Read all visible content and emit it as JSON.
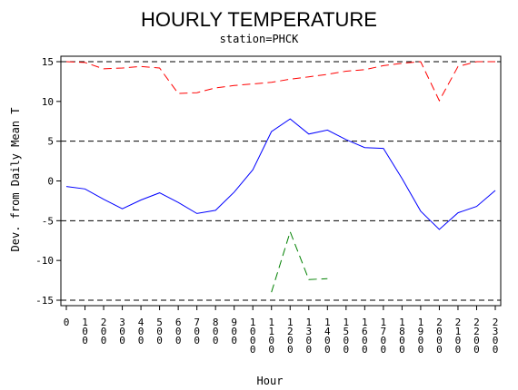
{
  "chart_data": {
    "type": "line",
    "title": "HOURLY TEMPERATURE",
    "subtitle": "station=PHCK",
    "xlabel": "Hour",
    "ylabel": "Dev. from Daily Mean T",
    "xlim": [
      0,
      23
    ],
    "ylim": [
      -15,
      15
    ],
    "yticks": [
      -15,
      -10,
      -5,
      0,
      5,
      10,
      15
    ],
    "xtick_labels": [
      "0",
      "100",
      "200",
      "300",
      "400",
      "500",
      "600",
      "700",
      "800",
      "900",
      "1000",
      "1100",
      "1200",
      "1300",
      "1400",
      "1500",
      "1600",
      "1700",
      "1800",
      "1900",
      "2000",
      "2100",
      "2200",
      "2300"
    ],
    "reference_lines": [
      -15,
      -5,
      5,
      15
    ],
    "series": [
      {
        "color": "#0000ff",
        "style": "solid",
        "x": [
          0,
          1,
          2,
          3,
          4,
          5,
          6,
          7,
          8,
          9,
          10,
          11,
          12,
          13,
          14,
          15,
          16,
          17,
          18,
          19,
          20,
          21,
          22,
          23
        ],
        "values": [
          -0.7,
          -1.0,
          -2.3,
          -3.5,
          -2.4,
          -1.5,
          -2.7,
          -4.1,
          -3.7,
          -1.4,
          1.4,
          6.2,
          7.8,
          5.9,
          6.4,
          5.2,
          4.2,
          4.1,
          0.3,
          -3.8,
          -6.1,
          -4.0,
          -3.2,
          -1.2
        ]
      },
      {
        "color": "#ff0000",
        "style": "dashed",
        "x": [
          0,
          1,
          2,
          3,
          4,
          5,
          6,
          7,
          8,
          9,
          10,
          11,
          12,
          13,
          14,
          15,
          16,
          17,
          18,
          19,
          20,
          21,
          22,
          23
        ],
        "values": [
          15.0,
          14.9,
          14.1,
          14.2,
          14.4,
          14.2,
          11.0,
          11.1,
          11.7,
          12.0,
          12.2,
          12.4,
          12.8,
          13.1,
          13.4,
          13.8,
          14.0,
          14.5,
          14.8,
          15.0,
          10.1,
          14.4,
          15.0,
          15.0
        ]
      },
      {
        "color": "#008000",
        "style": "dashed",
        "x": [
          11,
          12,
          13,
          14
        ],
        "values": [
          -14.0,
          -6.4,
          -12.4,
          -12.3
        ]
      }
    ]
  }
}
